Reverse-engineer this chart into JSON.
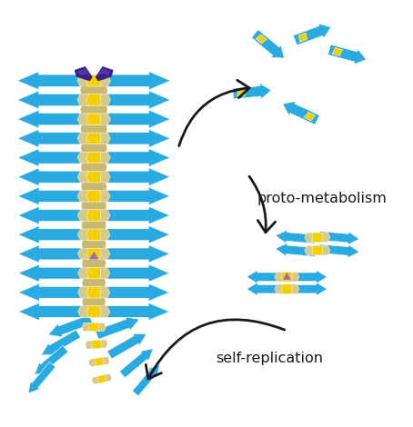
{
  "bg_color": "#ffffff",
  "cyan": "#29ABE2",
  "yellow": "#F5D000",
  "beige": "#D8C88A",
  "beige2": "#C8B870",
  "purple": "#3A2080",
  "purple2": "#9966CC",
  "black": "#1a1a1a",
  "label_proto": "proto-metabolism",
  "label_self": "self-replication",
  "fig_width": 4.54,
  "fig_height": 4.7,
  "dpi": 100
}
